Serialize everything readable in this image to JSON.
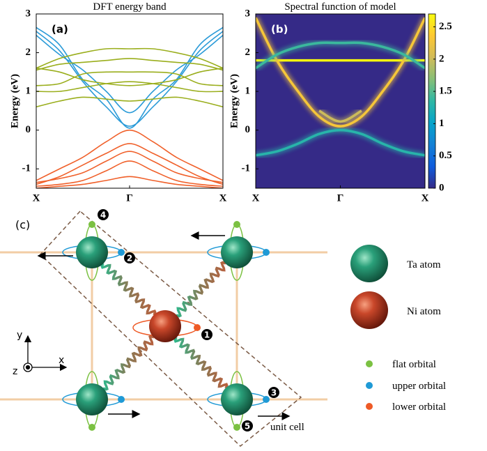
{
  "chart_data": [
    {
      "type": "line",
      "title": "DFT energy band",
      "panel_label": "(a)",
      "y_label": "Energy (eV)",
      "xlim": [
        0,
        2
      ],
      "ylim": [
        -1.5,
        3
      ],
      "xticks": [
        {
          "value": 0,
          "label": "X"
        },
        {
          "value": 1,
          "label": "Γ"
        },
        {
          "value": 2,
          "label": "X"
        }
      ],
      "yticks": [
        -1,
        0,
        1,
        2,
        3
      ],
      "x": [
        0,
        0.25,
        0.5,
        0.75,
        1,
        1.25,
        1.5,
        1.75,
        2
      ],
      "series": [
        {
          "color": "#2b9bd8",
          "values": [
            2.65,
            2.2,
            1.3,
            0.8,
            0.05,
            0.8,
            1.3,
            2.2,
            2.65
          ]
        },
        {
          "color": "#2b9bd8",
          "values": [
            2.55,
            2.05,
            1.25,
            0.6,
            0.1,
            0.6,
            1.25,
            2.05,
            2.55
          ]
        },
        {
          "color": "#2b9bd8",
          "values": [
            2.45,
            1.95,
            1.55,
            1.0,
            0.45,
            1.0,
            1.55,
            1.95,
            2.45
          ]
        },
        {
          "color": "#9aae1c",
          "values": [
            1.6,
            1.85,
            2.0,
            2.1,
            2.1,
            2.1,
            2.0,
            1.85,
            1.6
          ]
        },
        {
          "color": "#9aae1c",
          "values": [
            1.55,
            1.7,
            1.75,
            1.8,
            1.85,
            1.8,
            1.75,
            1.7,
            1.55
          ]
        },
        {
          "color": "#9aae1c",
          "values": [
            1.6,
            1.5,
            1.3,
            1.2,
            1.15,
            1.2,
            1.3,
            1.5,
            1.6
          ]
        },
        {
          "color": "#9aae1c",
          "values": [
            1.15,
            1.2,
            1.45,
            1.5,
            1.5,
            1.5,
            1.45,
            1.2,
            1.15
          ]
        },
        {
          "color": "#9aae1c",
          "values": [
            1.0,
            1.0,
            1.1,
            1.2,
            1.25,
            1.2,
            1.1,
            1.0,
            1.0
          ]
        },
        {
          "color": "#9aae1c",
          "values": [
            0.6,
            0.75,
            0.85,
            0.8,
            0.75,
            0.8,
            0.85,
            0.75,
            0.6
          ]
        },
        {
          "color": "#f0602a",
          "values": [
            -1.3,
            -1.0,
            -0.7,
            -0.3,
            0.0,
            -0.3,
            -0.7,
            -1.0,
            -1.3
          ]
        },
        {
          "color": "#f0602a",
          "values": [
            -1.4,
            -1.2,
            -0.9,
            -0.6,
            -0.35,
            -0.6,
            -0.9,
            -1.2,
            -1.4
          ]
        },
        {
          "color": "#f0602a",
          "values": [
            -1.35,
            -1.25,
            -1.1,
            -0.8,
            -0.55,
            -0.8,
            -1.1,
            -1.25,
            -1.35
          ]
        },
        {
          "color": "#f0602a",
          "values": [
            -1.45,
            -1.4,
            -1.3,
            -1.05,
            -0.8,
            -1.05,
            -1.3,
            -1.4,
            -1.45
          ]
        },
        {
          "color": "#f0602a",
          "values": [
            -1.5,
            -1.45,
            -1.4,
            -1.3,
            -1.2,
            -1.3,
            -1.4,
            -1.45,
            -1.5
          ]
        }
      ]
    },
    {
      "type": "spectral",
      "title": "Spectral function of model",
      "panel_label": "(b)",
      "y_label": "Energy (eV)",
      "xlim": [
        0,
        2
      ],
      "ylim": [
        -1.5,
        3
      ],
      "xticks": [
        {
          "value": 0,
          "label": "X"
        },
        {
          "value": 1,
          "label": "Γ"
        },
        {
          "value": 2,
          "label": "X"
        }
      ],
      "yticks": [
        -1,
        0,
        1,
        2,
        3
      ],
      "colorbar": {
        "lim": [
          0,
          2.7
        ],
        "ticks": [
          0,
          0.5,
          1,
          1.5,
          2,
          2.5
        ],
        "colors": [
          "#352a87",
          "#0f5cdd",
          "#1481d6",
          "#06a4ca",
          "#2eb7a4",
          "#87bf77",
          "#d1bb59",
          "#fec832",
          "#f9fb0e"
        ]
      },
      "x": [
        0,
        0.25,
        0.5,
        0.75,
        1,
        1.25,
        1.5,
        1.75,
        2
      ],
      "series": [
        {
          "intensity": 2.7,
          "values": [
            1.8,
            1.8,
            1.8,
            1.8,
            1.8,
            1.8,
            1.8,
            1.8,
            1.8
          ]
        },
        {
          "intensity": 2.3,
          "values": [
            2.9,
            1.8,
            1.0,
            0.35,
            0.1,
            0.35,
            1.0,
            1.8,
            2.9
          ]
        },
        {
          "intensity": 1.4,
          "values": [
            1.6,
            1.95,
            2.15,
            2.25,
            2.25,
            2.25,
            2.15,
            1.95,
            1.6
          ]
        },
        {
          "intensity": 1.3,
          "values": [
            -0.65,
            -0.55,
            -0.35,
            -0.1,
            0.0,
            -0.1,
            -0.35,
            -0.55,
            -0.65
          ]
        },
        {
          "intensity": 2.0,
          "values": [
            null,
            null,
            null,
            0.5,
            0.22,
            0.5,
            null,
            null,
            null
          ]
        }
      ]
    }
  ],
  "diagram": {
    "panel_label": "(c)",
    "axes": {
      "x": "x",
      "y": "y",
      "z": "z"
    },
    "sites": [
      "1",
      "2",
      "3",
      "4",
      "5"
    ],
    "legend": {
      "ta": "Ta atom",
      "ni": "Ni atom",
      "flat": "flat orbital",
      "upper": "upper orbital",
      "lower": "lower orbital"
    },
    "unit_cell": "unit cell"
  }
}
